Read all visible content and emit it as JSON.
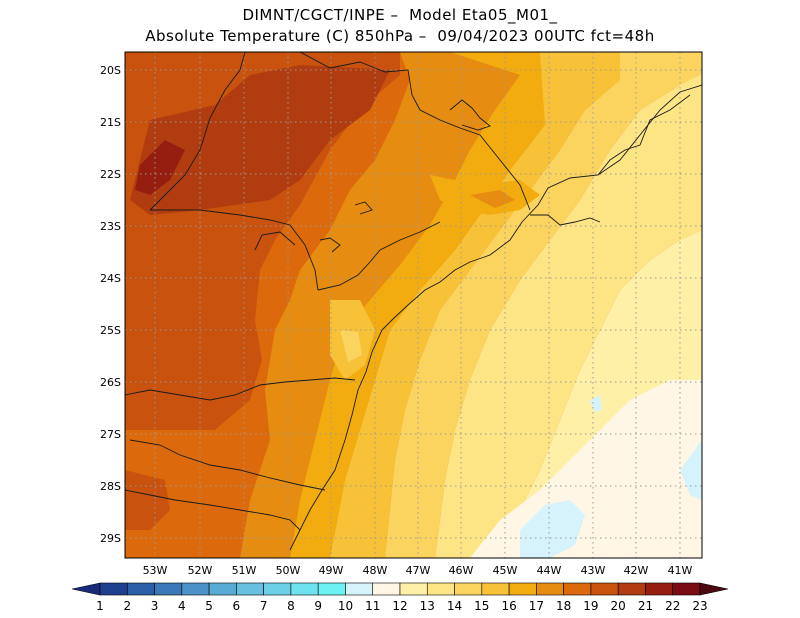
{
  "title": {
    "line1": "DIMNT/CGCT/INPE –  Model Eta05_M01_",
    "line2": "Absolute Temperature (C) 850hPa –  09/04/2023 00UTC fct=48h"
  },
  "map": {
    "lat_labels": [
      "20S",
      "21S",
      "22S",
      "23S",
      "24S",
      "25S",
      "26S",
      "27S",
      "28S",
      "29S"
    ],
    "lon_labels": [
      "53W",
      "52W",
      "51W",
      "50W",
      "49W",
      "48W",
      "47W",
      "46W",
      "45W",
      "44W",
      "43W",
      "42W",
      "41W"
    ],
    "extent": {
      "lon_west": -53.9,
      "lon_east": -40.7,
      "lat_north": -19.75,
      "lat_south": -29.45
    },
    "grid": "dotted"
  },
  "colorbar": {
    "labels": [
      "1",
      "2",
      "3",
      "4",
      "5",
      "6",
      "7",
      "8",
      "9",
      "10",
      "11",
      "12",
      "13",
      "14",
      "15",
      "16",
      "17",
      "18",
      "19",
      "20",
      "21",
      "22",
      "23"
    ],
    "colors": [
      "#1f3f8f",
      "#2a5fa8",
      "#3a78b8",
      "#4c92c8",
      "#5aaad6",
      "#66c0e0",
      "#6cd0e6",
      "#6ee2ee",
      "#6cf2f2",
      "#d6f2fa",
      "#fff6e6",
      "#fff0a8",
      "#fde484",
      "#fbd460",
      "#f8c238",
      "#f2ac10",
      "#e68c10",
      "#dc6a0c",
      "#c8520e",
      "#b03c10",
      "#961e10",
      "#7a0a14"
    ],
    "left_arrow_color": "#1a2a7a",
    "right_arrow_color": "#4a0a10"
  }
}
